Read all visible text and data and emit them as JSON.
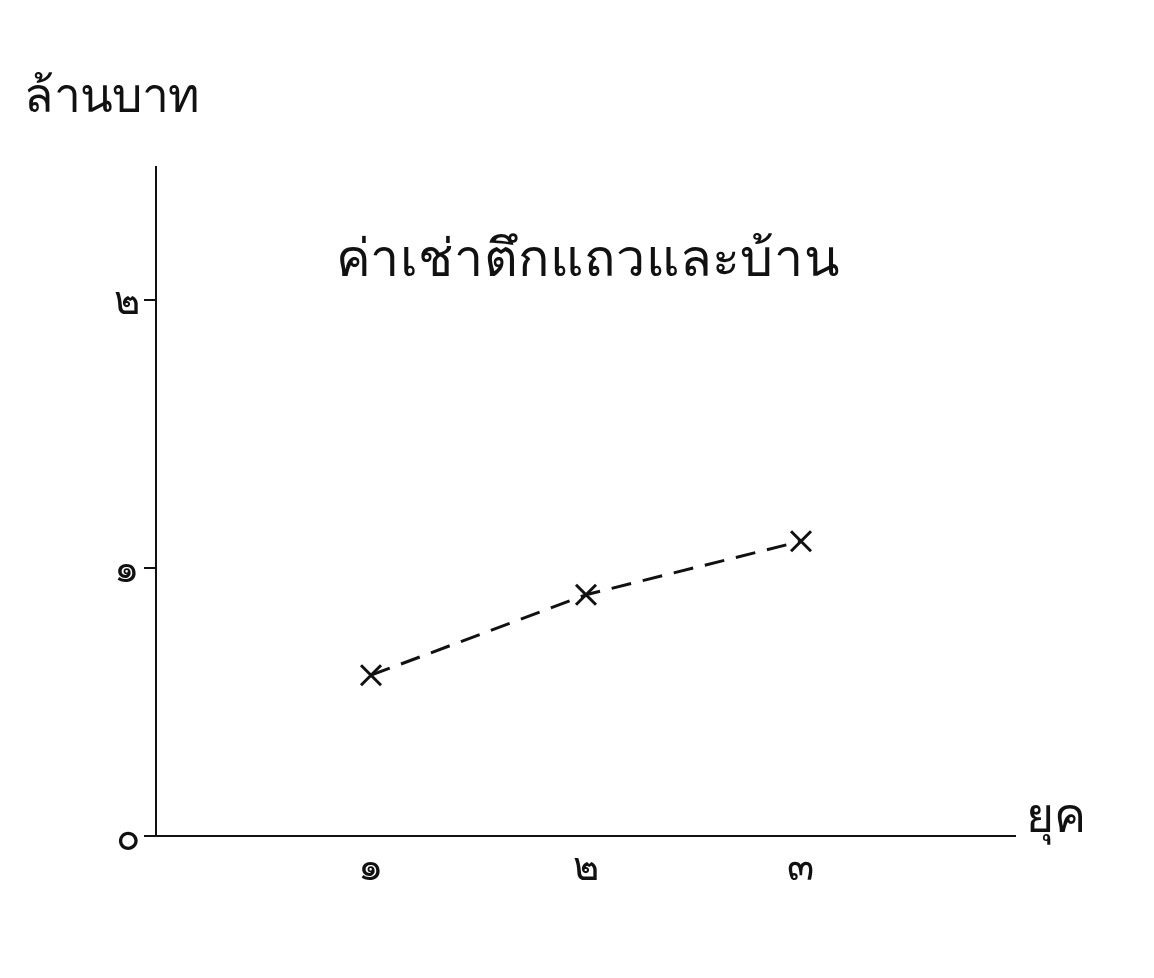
{
  "chart_data": {
    "type": "line",
    "title": "ค่าเช่าตึกแถวและบ้าน",
    "xlabel": "ยุค",
    "ylabel": "ล้านบาท",
    "categories": [
      "๑",
      "๒",
      "๓"
    ],
    "series": [
      {
        "color": "#111111",
        "values": [
          0.6,
          0.9,
          1.1
        ]
      }
    ],
    "ylim": [
      0,
      2.5
    ],
    "yticks": [
      {
        "value": 0,
        "label": "๐"
      },
      {
        "value": 1,
        "label": "๑"
      },
      {
        "value": 2,
        "label": "๒"
      }
    ],
    "grid": false,
    "legend": false,
    "marker": "cross",
    "line_style": "dashed"
  }
}
